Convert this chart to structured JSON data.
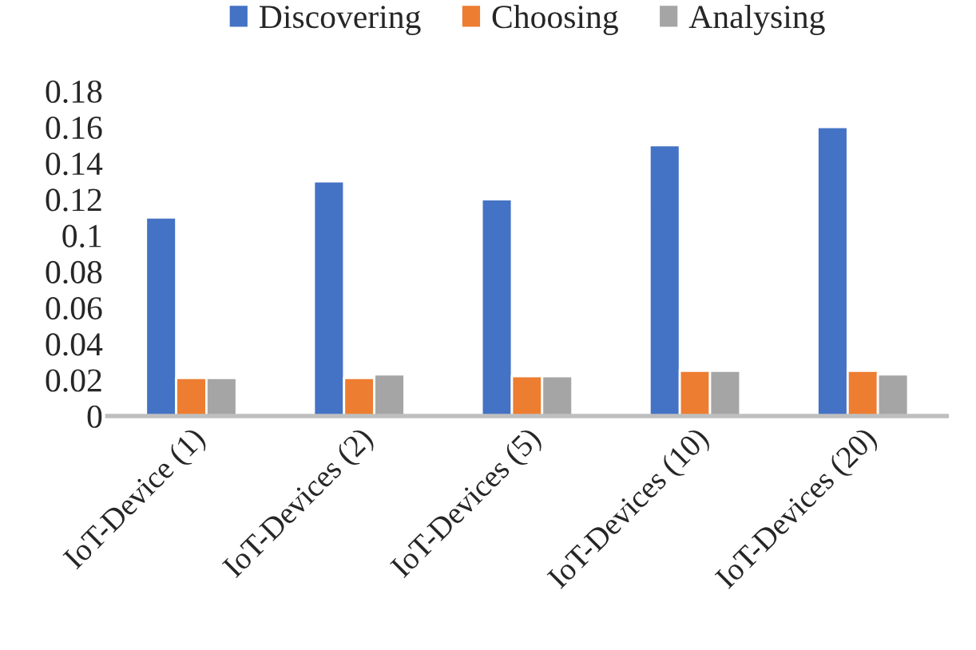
{
  "chart_data": {
    "type": "bar",
    "categories": [
      "IoT-Device (1)",
      "IoT-Devices (2)",
      "IoT-Devices (5)",
      "IoT-Devices (10)",
      "IoT-Devices (20)"
    ],
    "series": [
      {
        "name": "Discovering",
        "color": "#4472c4",
        "values": [
          0.11,
          0.13,
          0.12,
          0.15,
          0.16
        ]
      },
      {
        "name": "Choosing",
        "color": "#ed7d31",
        "values": [
          0.021,
          0.021,
          0.022,
          0.025,
          0.025
        ]
      },
      {
        "name": "Analysing",
        "color": "#a5a5a5",
        "values": [
          0.021,
          0.023,
          0.022,
          0.025,
          0.023
        ]
      }
    ],
    "ylim": [
      0,
      0.18
    ],
    "yticks": [
      0,
      {
        "value": 0.02,
        "label": "0.02"
      },
      {
        "value": 0.04,
        "label": "0.04"
      },
      {
        "value": 0.06,
        "label": "0.06"
      },
      {
        "value": 0.08,
        "label": "0.08"
      },
      {
        "value": 0.1,
        "label": "0.1"
      },
      {
        "value": 0.12,
        "label": "0.12"
      },
      {
        "value": 0.14,
        "label": "0.14"
      },
      {
        "value": 0.16,
        "label": "0.16"
      },
      {
        "value": 0.18,
        "label": "0.18"
      }
    ],
    "grid": false,
    "legend": "top"
  }
}
